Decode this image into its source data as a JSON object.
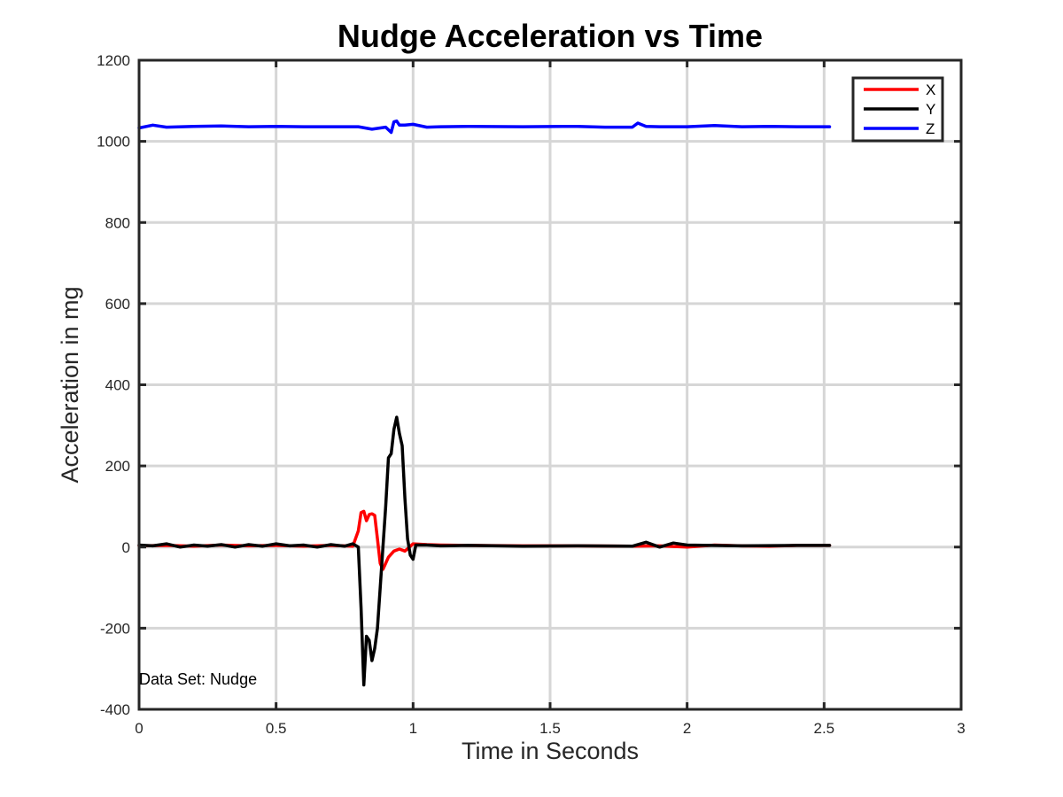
{
  "chart_data": {
    "type": "line",
    "title": "Nudge Acceleration vs Time",
    "xlabel": "Time in Seconds",
    "ylabel": "Acceleration in mg",
    "xlim": [
      0,
      3
    ],
    "ylim": [
      -400,
      1200
    ],
    "xticks": [
      0,
      0.5,
      1,
      1.5,
      2,
      2.5,
      3
    ],
    "xtick_labels": [
      "0",
      "0.5",
      "1",
      "1.5",
      "2",
      "2.5",
      "3"
    ],
    "yticks": [
      -400,
      -200,
      0,
      200,
      400,
      600,
      800,
      1000,
      1200
    ],
    "ytick_labels": [
      "-400",
      "-200",
      "0",
      "200",
      "400",
      "600",
      "800",
      "1000",
      "1200"
    ],
    "grid": true,
    "legend_position": "top-right",
    "annotation": "Data Set: Nudge",
    "colors": {
      "X": "#ff0000",
      "Y": "#000000",
      "Z": "#0000ff"
    },
    "series": [
      {
        "name": "X",
        "x": [
          0,
          0.1,
          0.2,
          0.3,
          0.4,
          0.5,
          0.6,
          0.7,
          0.78,
          0.8,
          0.81,
          0.82,
          0.83,
          0.84,
          0.85,
          0.86,
          0.87,
          0.88,
          0.89,
          0.9,
          0.91,
          0.93,
          0.95,
          0.97,
          1.0,
          1.05,
          1.1,
          1.2,
          1.4,
          1.6,
          1.8,
          1.9,
          2.0,
          2.1,
          2.2,
          2.3,
          2.4,
          2.52
        ],
        "y": [
          3,
          4,
          2,
          5,
          3,
          4,
          2,
          4,
          2,
          40,
          85,
          88,
          65,
          80,
          82,
          78,
          20,
          -40,
          -55,
          -40,
          -25,
          -10,
          -5,
          -10,
          8,
          6,
          5,
          4,
          3,
          3,
          2,
          3,
          0,
          5,
          3,
          2,
          4,
          4
        ]
      },
      {
        "name": "Y",
        "x": [
          0,
          0.05,
          0.1,
          0.15,
          0.2,
          0.25,
          0.3,
          0.35,
          0.4,
          0.45,
          0.5,
          0.55,
          0.6,
          0.65,
          0.7,
          0.75,
          0.78,
          0.8,
          0.81,
          0.82,
          0.83,
          0.84,
          0.85,
          0.86,
          0.87,
          0.88,
          0.89,
          0.9,
          0.91,
          0.92,
          0.93,
          0.94,
          0.95,
          0.96,
          0.97,
          0.98,
          0.99,
          1.0,
          1.01,
          1.05,
          1.1,
          1.2,
          1.4,
          1.6,
          1.8,
          1.85,
          1.9,
          1.95,
          2.0,
          2.2,
          2.4,
          2.52
        ],
        "y": [
          5,
          3,
          8,
          0,
          5,
          2,
          6,
          0,
          6,
          2,
          8,
          3,
          5,
          0,
          6,
          2,
          8,
          0,
          -150,
          -340,
          -220,
          -230,
          -280,
          -250,
          -200,
          -100,
          0,
          100,
          220,
          230,
          290,
          320,
          280,
          250,
          120,
          20,
          -20,
          -30,
          5,
          5,
          3,
          4,
          2,
          3,
          2,
          12,
          0,
          10,
          5,
          3,
          4,
          4
        ]
      },
      {
        "name": "Z",
        "x": [
          0,
          0.05,
          0.1,
          0.2,
          0.3,
          0.4,
          0.5,
          0.6,
          0.7,
          0.8,
          0.85,
          0.9,
          0.92,
          0.93,
          0.94,
          0.95,
          0.97,
          1.0,
          1.05,
          1.1,
          1.2,
          1.4,
          1.6,
          1.7,
          1.8,
          1.82,
          1.85,
          1.9,
          2.0,
          2.1,
          2.2,
          2.3,
          2.4,
          2.52
        ],
        "y": [
          1033,
          1040,
          1035,
          1037,
          1038,
          1036,
          1037,
          1036,
          1036,
          1036,
          1030,
          1035,
          1022,
          1048,
          1050,
          1040,
          1040,
          1042,
          1035,
          1036,
          1037,
          1036,
          1037,
          1035,
          1035,
          1045,
          1037,
          1036,
          1036,
          1039,
          1036,
          1037,
          1036,
          1036
        ]
      }
    ]
  }
}
